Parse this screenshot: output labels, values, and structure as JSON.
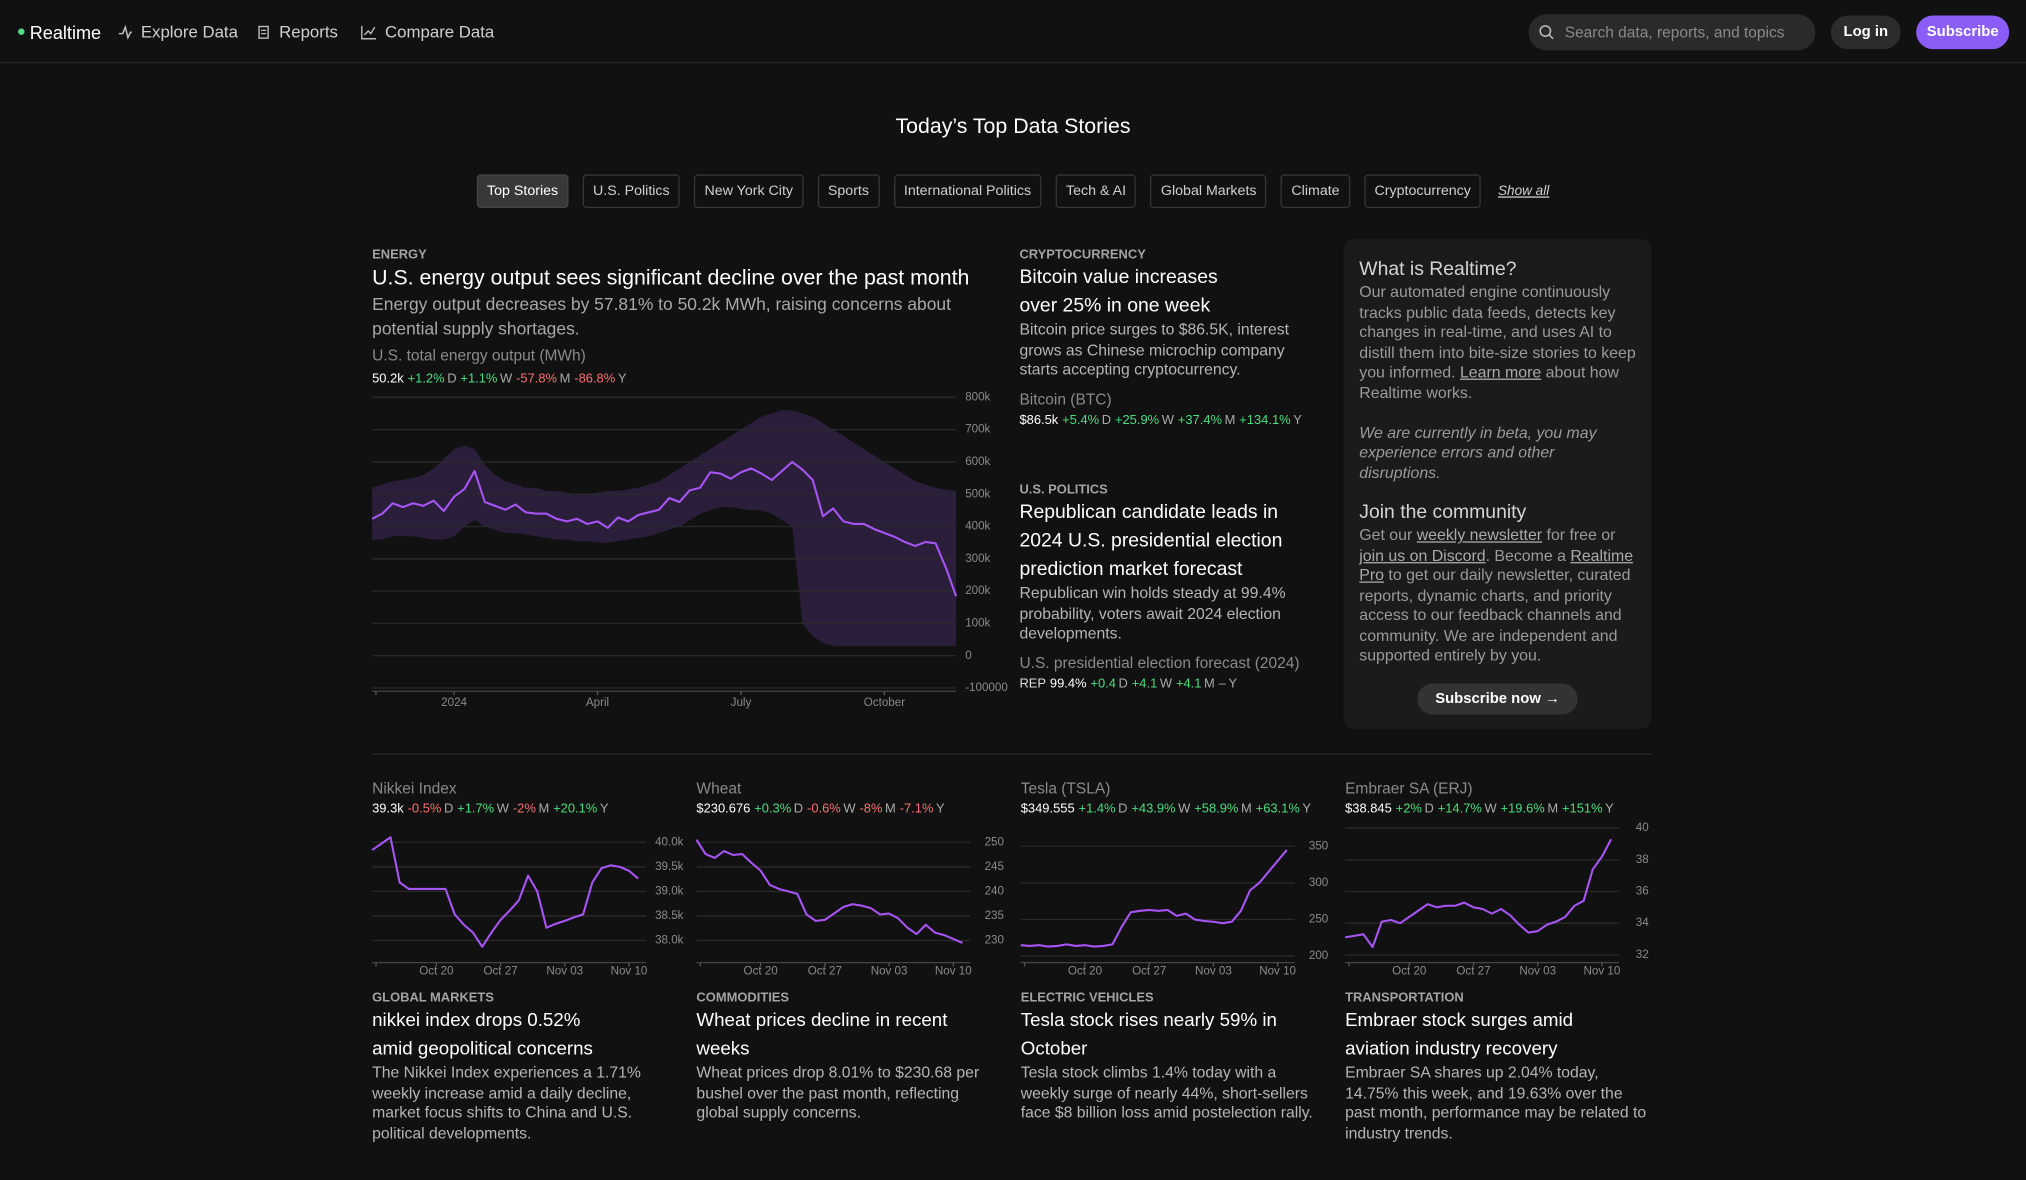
{
  "nav": {
    "brand": "Realtime",
    "links": [
      "Explore Data",
      "Reports",
      "Compare Data"
    ],
    "search_placeholder": "Search data, reports, and topics",
    "login": "Log in",
    "subscribe": "Subscribe"
  },
  "heading": "Today’s Top Data Stories",
  "tabs": [
    "Top Stories",
    "U.S. Politics",
    "New York City",
    "Sports",
    "International Politics",
    "Tech & AI",
    "Global Markets",
    "Climate",
    "Cryptocurrency"
  ],
  "show_all": "Show all",
  "stories": [
    {
      "category": "ENERGY",
      "title_lines": [
        "U.S. energy output sees significant decline over the past month"
      ],
      "summary": "Energy output decreases by 57.81% to 50.2k MWh, raising concerns about potential supply shortages.",
      "metric": "U.S. total energy output (MWh)",
      "value": "50.2k",
      "stats": [
        {
          "change": "+1.2%",
          "period": "D"
        },
        {
          "change": "+1.1%",
          "period": "W"
        },
        {
          "change": "-57.8%",
          "period": "M"
        },
        {
          "change": "-86.8%",
          "period": "Y"
        }
      ]
    },
    {
      "category": "CRYPTOCURRENCY",
      "title_lines": [
        "Bitcoin value increases",
        "over 25% in one week"
      ],
      "summary": "Bitcoin price surges to $86.5K, interest grows as Chinese microchip company starts accepting cryptocurrency.",
      "metric": "Bitcoin (BTC)",
      "value": "$86.5k",
      "stats": [
        {
          "change": "+5.4%",
          "period": "D"
        },
        {
          "change": "+25.9%",
          "period": "W"
        },
        {
          "change": "+37.4%",
          "period": "M"
        },
        {
          "change": "+134.1%",
          "period": "Y"
        }
      ]
    },
    {
      "category": "U.S. POLITICS",
      "title_lines": [
        "Republican candidate leads in 2024 U.S. presidential election prediction market forecast"
      ],
      "summary": "Republican win holds steady at 99.4% probability, voters await 2024 election developments.",
      "metric": "U.S. presidential election forecast (2024)",
      "prefix": "REP",
      "value": "99.4%",
      "stats": [
        {
          "change": "+0.4",
          "period": "D"
        },
        {
          "change": "+4.1",
          "period": "W"
        },
        {
          "change": "+4.1",
          "period": "M"
        },
        {
          "change": "–",
          "period": "Y"
        }
      ]
    },
    {
      "category": "GLOBAL MARKETS",
      "title_lines": [
        "nikkei index drops 0.52%",
        "amid geopolitical concerns"
      ],
      "summary": "The Nikkei Index experiences a 1.71% weekly increase amid a daily decline, market focus shifts to China and U.S. political developments.",
      "metric": "Nikkei Index",
      "value": "39.3k",
      "stats": [
        {
          "change": "-0.5%",
          "period": "D"
        },
        {
          "change": "+1.7%",
          "period": "W"
        },
        {
          "change": "-2%",
          "period": "M"
        },
        {
          "change": "+20.1%",
          "period": "Y"
        }
      ]
    },
    {
      "category": "COMMODITIES",
      "title_lines": [
        "Wheat prices decline in recent weeks"
      ],
      "summary": "Wheat prices drop 8.01% to $230.68 per bushel over the past month, reflecting global supply concerns.",
      "metric": "Wheat",
      "value": "$230.676",
      "stats": [
        {
          "change": "+0.3%",
          "period": "D"
        },
        {
          "change": "-0.6%",
          "period": "W"
        },
        {
          "change": "-8%",
          "period": "M"
        },
        {
          "change": "-7.1%",
          "period": "Y"
        }
      ]
    },
    {
      "category": "ELECTRIC VEHICLES",
      "title_lines": [
        "Tesla stock rises nearly 59% in October"
      ],
      "summary": "Tesla stock climbs 1.4% today with a weekly surge of nearly 44%, short-sellers face $8 billion loss amid postelection rally.",
      "metric": "Tesla (TSLA)",
      "value": "$349.555",
      "stats": [
        {
          "change": "+1.4%",
          "period": "D"
        },
        {
          "change": "+43.9%",
          "period": "W"
        },
        {
          "change": "+58.9%",
          "period": "M"
        },
        {
          "change": "+63.1%",
          "period": "Y"
        }
      ]
    },
    {
      "category": "TRANSPORTATION",
      "title_lines": [
        "Embraer stock surges amid",
        "aviation industry recovery"
      ],
      "summary": "Embraer SA shares up 2.04% today, 14.75% this week, and 19.63% over the past month, performance may be related to industry trends.",
      "metric": "Embraer SA (ERJ)",
      "value": "$38.845",
      "stats": [
        {
          "change": "+2%",
          "period": "D"
        },
        {
          "change": "+14.7%",
          "period": "W"
        },
        {
          "change": "+19.6%",
          "period": "M"
        },
        {
          "change": "+151%",
          "period": "Y"
        }
      ]
    }
  ],
  "sidebar": {
    "title": "What is Realtime?",
    "about": [
      {
        "text": "Our automated engine continuously tracks public data feeds, detects key changes in real-time, and uses AI to distill them into bite-size stories to keep you informed. "
      },
      {
        "link": "Learn more"
      },
      {
        "text": " about how Realtime works."
      }
    ],
    "beta": "We are currently in beta, you may experience errors and other disruptions.",
    "community_title": "Join the community",
    "community": [
      {
        "text": "Get our "
      },
      {
        "link": "weekly newsletter"
      },
      {
        "text": " for free or "
      },
      {
        "link": "join us on Discord"
      },
      {
        "text": ". Become a "
      },
      {
        "link": "Realtime Pro"
      },
      {
        "text": " to get our daily newsletter, curated reports, dynamic charts, and priority access to our feedback channels and community. We are independent and supported entirely by you."
      }
    ],
    "button": "Subscribe now →"
  },
  "chart_data": [
    {
      "type": "line",
      "color": "#a855f7",
      "band_color": "#2a1e3b",
      "categories": [
        null,
        null,
        null,
        null,
        null,
        null,
        null,
        null,
        "2024",
        null,
        null,
        null,
        null,
        null,
        null,
        null,
        null,
        null,
        null,
        null,
        null,
        null,
        "April",
        null,
        null,
        null,
        null,
        null,
        null,
        null,
        null,
        null,
        null,
        null,
        null,
        null,
        "July",
        null,
        null,
        null,
        null,
        null,
        null,
        null,
        null,
        null,
        null,
        null,
        null,
        null,
        "October",
        null,
        null,
        null,
        null,
        null,
        null,
        null
      ],
      "values": [
        424000,
        440000,
        472000,
        460000,
        472000,
        464000,
        480000,
        448000,
        492000,
        516000,
        572000,
        476000,
        464000,
        452000,
        468000,
        444000,
        440000,
        440000,
        424000,
        416000,
        424000,
        408000,
        416000,
        396000,
        428000,
        416000,
        436000,
        444000,
        452000,
        488000,
        476000,
        512000,
        520000,
        568000,
        564000,
        548000,
        568000,
        580000,
        564000,
        544000,
        572000,
        600000,
        576000,
        544000,
        432000,
        456000,
        416000,
        408000,
        408000,
        392000,
        380000,
        368000,
        352000,
        340000,
        352000,
        348000,
        272000,
        184000
      ],
      "band_high": [
        520000,
        530000,
        540000,
        545000,
        550000,
        560000,
        580000,
        610000,
        640000,
        650000,
        640000,
        590000,
        560000,
        540000,
        530000,
        520000,
        520000,
        510000,
        510000,
        505000,
        500000,
        500000,
        505000,
        510000,
        510000,
        515000,
        520000,
        530000,
        540000,
        560000,
        580000,
        600000,
        620000,
        640000,
        660000,
        680000,
        700000,
        720000,
        740000,
        750000,
        760000,
        760000,
        750000,
        740000,
        720000,
        700000,
        680000,
        660000,
        640000,
        620000,
        600000,
        580000,
        560000,
        540000,
        530000,
        520000,
        515000,
        510000
      ],
      "band_low": [
        360000,
        360000,
        370000,
        370000,
        370000,
        365000,
        360000,
        360000,
        370000,
        400000,
        420000,
        400000,
        390000,
        380000,
        380000,
        375000,
        370000,
        365000,
        360000,
        360000,
        355000,
        355000,
        350000,
        350000,
        355000,
        360000,
        365000,
        370000,
        380000,
        390000,
        400000,
        420000,
        440000,
        450000,
        460000,
        460000,
        455000,
        450000,
        450000,
        440000,
        420000,
        400000,
        100000,
        60000,
        40000,
        30000,
        30000,
        30000,
        30000,
        30000,
        30000,
        30000,
        30000,
        30000,
        30000,
        30000,
        30000,
        30000
      ],
      "ylim": [
        -110000,
        830000
      ],
      "yticks": [
        {
          "value": 800000,
          "label": "800k"
        },
        {
          "value": 700000,
          "label": "700k"
        },
        {
          "value": 600000,
          "label": "600k"
        },
        {
          "value": 500000,
          "label": "500k"
        },
        {
          "value": 400000,
          "label": "400k"
        },
        {
          "value": 300000,
          "label": "300k"
        },
        {
          "value": 200000,
          "label": "200k"
        },
        {
          "value": 100000,
          "label": "100k"
        },
        0,
        -100000
      ]
    },
    {
      "type": "line",
      "color": "#a855f7",
      "categories": [
        null,
        null,
        null,
        null,
        null,
        null,
        null,
        "Oct 20",
        null,
        null,
        null,
        null,
        null,
        null,
        "Oct 27",
        null,
        null,
        null,
        null,
        null,
        null,
        "Nov 03",
        null,
        null,
        null,
        null,
        null,
        null,
        "Nov 10",
        null
      ],
      "values": [
        39840,
        39970,
        40100,
        39180,
        39050,
        39050,
        39050,
        39050,
        39050,
        38530,
        38320,
        38160,
        37870,
        38160,
        38420,
        38610,
        38820,
        39320,
        39000,
        38260,
        38340,
        38400,
        38470,
        38530,
        39180,
        39470,
        39530,
        39500,
        39420,
        39260
      ],
      "ylim": [
        37550,
        40180
      ],
      "yticks": [
        {
          "value": 40000,
          "label": "40.0k"
        },
        {
          "value": 39500,
          "label": "39.5k"
        },
        {
          "value": 39000,
          "label": "39.0k"
        },
        {
          "value": 38500,
          "label": "38.5k"
        },
        {
          "value": 38000,
          "label": "38.0k"
        }
      ]
    },
    {
      "type": "line",
      "color": "#a855f7",
      "categories": [
        null,
        null,
        null,
        null,
        null,
        null,
        null,
        "Oct 20",
        null,
        null,
        null,
        null,
        null,
        null,
        "Oct 27",
        null,
        null,
        null,
        null,
        null,
        null,
        "Nov 03",
        null,
        null,
        null,
        null,
        null,
        null,
        "Nov 10",
        null
      ],
      "values": [
        250.5,
        247.6,
        246.8,
        248.2,
        247.4,
        247.6,
        245.8,
        244.2,
        241.3,
        240.5,
        240,
        239.5,
        235.3,
        234,
        234.2,
        235.5,
        236.8,
        237.4,
        237.1,
        236.6,
        235.3,
        235.5,
        234.5,
        232.6,
        231.3,
        233.2,
        231.6,
        231.1,
        230.3,
        229.5
      ],
      "ylim": [
        225.5,
        251.8
      ],
      "yticks": [
        250,
        245,
        240,
        235,
        230
      ]
    },
    {
      "type": "line",
      "color": "#a855f7",
      "categories": [
        null,
        null,
        null,
        null,
        null,
        null,
        null,
        "Oct 20",
        null,
        null,
        null,
        null,
        null,
        null,
        "Oct 27",
        null,
        null,
        null,
        null,
        null,
        null,
        "Nov 03",
        null,
        null,
        null,
        null,
        null,
        null,
        "Nov 10",
        null
      ],
      "values": [
        215,
        214,
        215,
        213,
        214,
        216,
        214,
        215,
        213,
        214,
        216,
        240,
        260,
        262,
        263,
        262,
        263,
        255,
        258,
        250,
        248,
        247,
        245,
        247,
        262,
        290,
        300,
        315,
        330,
        345
      ],
      "ylim": [
        191.2,
        367.6
      ],
      "yticks": [
        350,
        300,
        250,
        200
      ]
    },
    {
      "type": "line",
      "color": "#a855f7",
      "categories": [
        null,
        null,
        null,
        null,
        null,
        null,
        null,
        "Oct 20",
        null,
        null,
        null,
        null,
        null,
        null,
        "Oct 27",
        null,
        null,
        null,
        null,
        null,
        null,
        "Nov 03",
        null,
        null,
        null,
        null,
        null,
        null,
        "Nov 10",
        null
      ],
      "values": [
        33.1,
        33.2,
        33.3,
        32.5,
        34.1,
        34.2,
        34.0,
        34.4,
        34.8,
        35.2,
        35.0,
        35.1,
        35.1,
        35.3,
        35.0,
        34.9,
        34.6,
        34.9,
        34.5,
        33.9,
        33.4,
        33.5,
        33.9,
        34.1,
        34.4,
        35.1,
        35.4,
        37.4,
        38.2,
        39.3
      ],
      "ylim": [
        31.51,
        39.67
      ],
      "yticks": [
        40,
        38,
        36,
        34,
        32
      ]
    }
  ]
}
